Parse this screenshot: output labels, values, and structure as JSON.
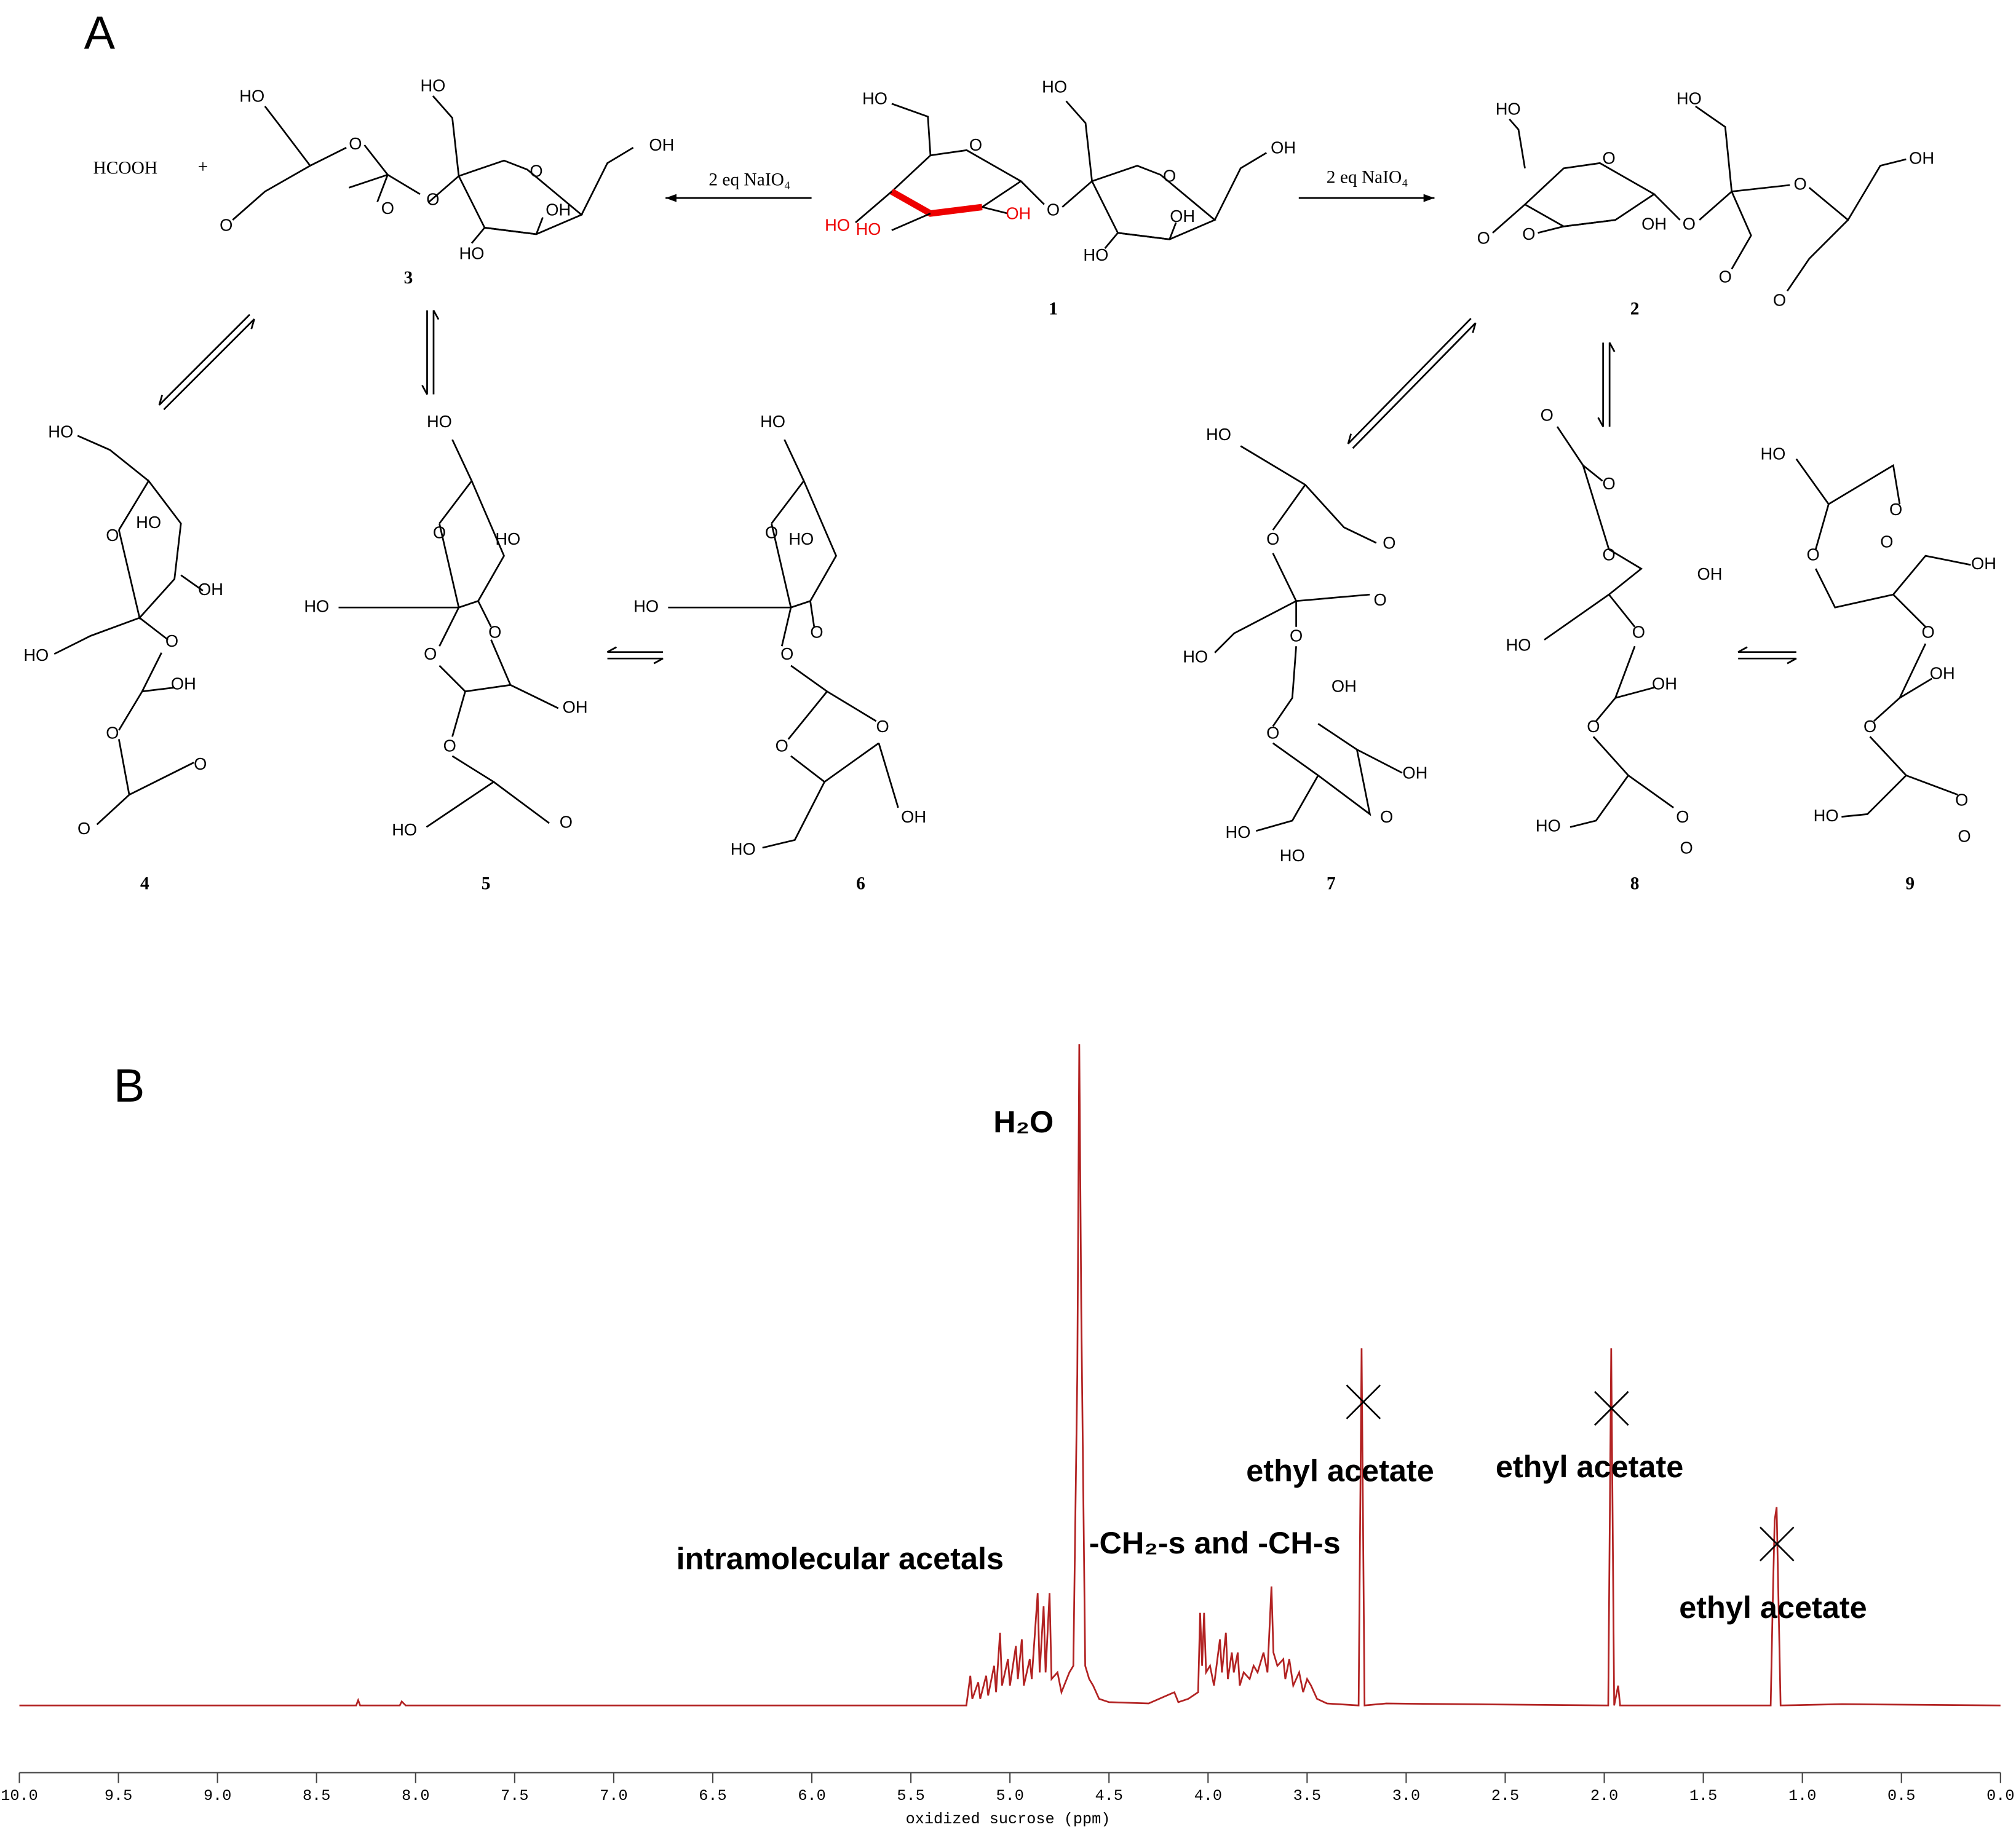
{
  "panel_a": {
    "label": "A",
    "side_products": [
      "HCOOH",
      "+"
    ],
    "reagents": [
      "2 eq NaIO₄",
      "2 eq NaIO₄"
    ],
    "compounds": [
      {
        "number": "1",
        "labels": [
          "HO",
          "HO",
          "OH",
          "O",
          "O",
          "O",
          "HO",
          "HO",
          "OH",
          "OH",
          "HO"
        ]
      },
      {
        "number": "2",
        "labels": [
          "HO",
          "HO",
          "OH",
          "O",
          "O",
          "O",
          "O",
          "OH",
          "O",
          "O",
          "O"
        ]
      },
      {
        "number": "3",
        "labels": [
          "HO",
          "HO",
          "OH",
          "O",
          "O",
          "O",
          "O",
          "O",
          "OH",
          "HO"
        ]
      },
      {
        "number": "4",
        "labels": [
          "HO",
          "O",
          "HO",
          "OH",
          "HO",
          "O",
          "OH",
          "O",
          "O",
          "O"
        ]
      },
      {
        "number": "5",
        "labels": [
          "HO",
          "O",
          "HO",
          "HO",
          "O",
          "O",
          "OH",
          "O",
          "HO",
          "O"
        ]
      },
      {
        "number": "6",
        "labels": [
          "HO",
          "O",
          "HO",
          "HO",
          "O",
          "O",
          "O",
          "O",
          "OH",
          "HO"
        ]
      },
      {
        "number": "7",
        "labels": [
          "HO",
          "O",
          "O",
          "O",
          "HO",
          "O",
          "OH",
          "O",
          "OH",
          "O",
          "HO",
          "HO"
        ]
      },
      {
        "number": "8",
        "labels": [
          "O",
          "O",
          "O",
          "OH",
          "HO",
          "O",
          "OH",
          "O",
          "O",
          "HO",
          "O"
        ]
      },
      {
        "number": "9",
        "labels": [
          "HO",
          "O",
          "O",
          "O",
          "OH",
          "O",
          "OH",
          "O",
          "O",
          "HO",
          "O"
        ]
      }
    ]
  },
  "chart_data": {
    "type": "line",
    "panel_label": "B",
    "x_label": "oxidized sucrose (ppm)",
    "color": "#b22222",
    "x": [
      10.0,
      8.3,
      8.29,
      8.28,
      8.08,
      8.07,
      8.05,
      5.22,
      5.2,
      5.19,
      5.16,
      5.15,
      5.12,
      5.11,
      5.08,
      5.07,
      5.05,
      5.04,
      5.01,
      5.0,
      4.97,
      4.96,
      4.94,
      4.93,
      4.9,
      4.89,
      4.86,
      4.85,
      4.83,
      4.82,
      4.8,
      4.79,
      4.76,
      4.74,
      4.7,
      4.68,
      4.66,
      4.65,
      4.64,
      4.62,
      4.6,
      4.58,
      4.55,
      4.5,
      4.3,
      4.17,
      4.15,
      4.1,
      4.05,
      4.04,
      4.03,
      4.02,
      4.01,
      3.99,
      3.97,
      3.94,
      3.93,
      3.91,
      3.9,
      3.88,
      3.87,
      3.85,
      3.84,
      3.82,
      3.79,
      3.77,
      3.75,
      3.72,
      3.7,
      3.68,
      3.67,
      3.65,
      3.62,
      3.61,
      3.59,
      3.57,
      3.54,
      3.52,
      3.5,
      3.48,
      3.45,
      3.4,
      3.24,
      3.225,
      3.21,
      3.1,
      1.98,
      1.965,
      1.95,
      1.93,
      1.92,
      1.16,
      1.15,
      1.14,
      1.13,
      1.12,
      1.11,
      0.8,
      0.0
    ],
    "values": [
      0,
      0,
      0.8,
      0,
      0,
      0.6,
      0,
      0,
      4.5,
      1,
      3.5,
      1,
      4.5,
      1.5,
      6,
      2,
      11,
      3,
      7,
      3,
      9,
      4,
      10,
      3,
      7,
      4,
      17,
      5,
      15,
      5,
      17,
      4,
      5,
      2,
      5,
      6,
      50,
      100,
      60,
      6,
      4,
      3,
      1,
      0.5,
      0.3,
      2,
      0.5,
      1,
      2,
      14,
      6,
      14,
      5,
      6,
      3,
      10,
      5,
      11,
      4,
      8,
      5,
      8,
      3,
      5,
      4,
      6,
      5,
      8,
      5,
      18,
      8,
      6,
      7,
      4,
      7,
      3,
      5,
      2,
      4,
      3,
      1,
      0.3,
      0,
      54,
      0,
      0.3,
      0,
      54,
      0,
      3,
      0,
      0,
      15,
      28,
      30,
      15,
      0,
      0.2,
      0
    ],
    "xlim": [
      10,
      0
    ],
    "ylim": [
      0,
      100
    ],
    "xticks": [
      {
        "value": 10,
        "label": "10.0"
      },
      9.5,
      {
        "value": 9,
        "label": "9.0"
      },
      8.5,
      {
        "value": 8,
        "label": "8.0"
      },
      7.5,
      {
        "value": 7,
        "label": "7.0"
      },
      6.5,
      {
        "value": 6,
        "label": "6.0"
      },
      5.5,
      {
        "value": 5,
        "label": "5.0"
      },
      4.5,
      {
        "value": 4,
        "label": "4.0"
      },
      3.5,
      {
        "value": 3,
        "label": "3.0"
      },
      2.5,
      {
        "value": 2,
        "label": "2.0"
      },
      1.5,
      {
        "value": 1,
        "label": "1.0"
      },
      0.5,
      {
        "value": 0,
        "label": "0.0"
      }
    ],
    "annotations": [
      "H₂O",
      "intramolecular acetals",
      "-CH₂-s and -CH-s",
      "ethyl acetate",
      "ethyl acetate",
      "ethyl acetate"
    ]
  }
}
